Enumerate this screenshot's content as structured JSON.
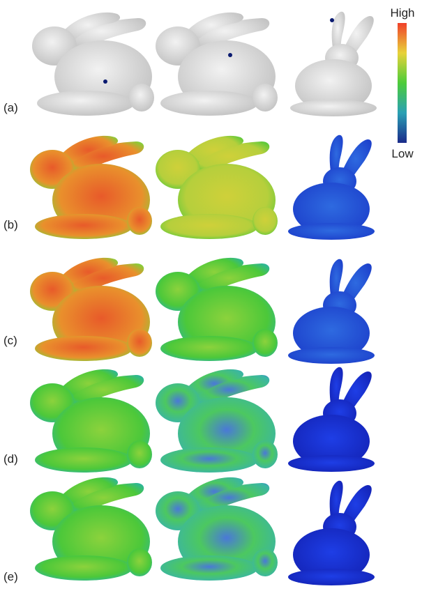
{
  "row_labels": [
    "(a)",
    "(b)",
    "(c)",
    "(d)",
    "(e)"
  ],
  "colorbar": {
    "high": "High",
    "low": "Low"
  }
}
